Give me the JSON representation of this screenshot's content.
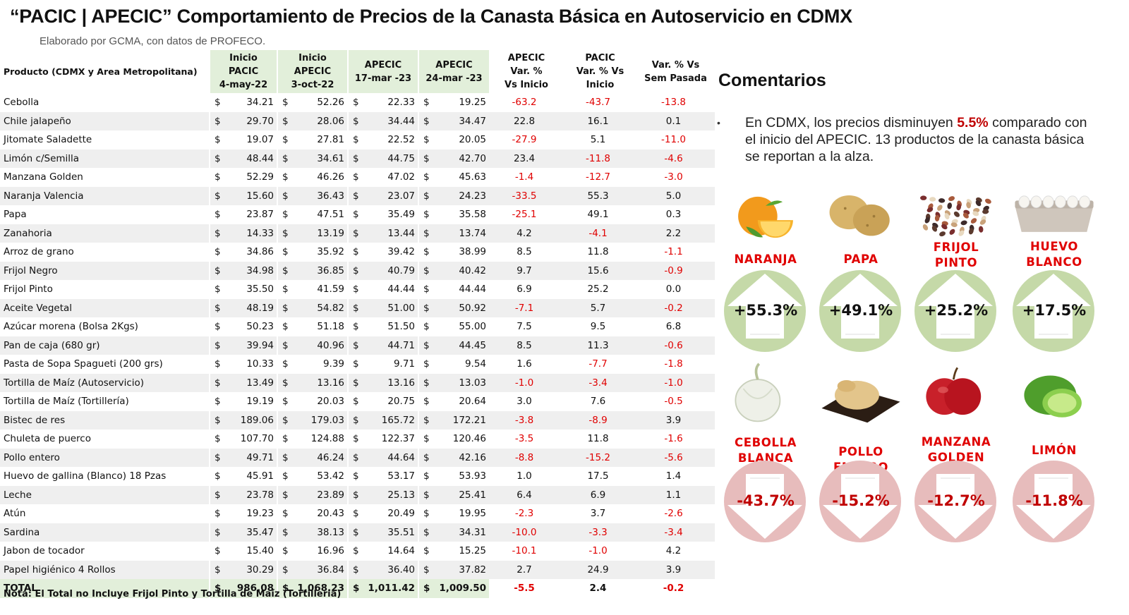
{
  "header": {
    "title": "“PACIC | APECIC” Comportamiento de Precios de la Canasta Básica en Autoservicio en CDMX",
    "subtitle": "Elaborado por GCMA, con datos de PROFECO."
  },
  "table": {
    "currency": "$",
    "headers": {
      "product": "Producto (CDMX y Area Metropolitana)",
      "c1": [
        "Inicio",
        "PACIC",
        "4-may-22"
      ],
      "c2": [
        "Inicio",
        "APECIC",
        "3-oct-22"
      ],
      "c3": [
        "APECIC",
        "17-mar -23"
      ],
      "c4": [
        "APECIC",
        "24-mar -23"
      ],
      "c5": [
        "APECIC",
        "Var. %",
        "Vs  Inicio"
      ],
      "c6": [
        "PACIC",
        "Var. % Vs",
        "Inicio"
      ],
      "c7": [
        "Var. % Vs",
        "Sem Pasada"
      ]
    },
    "rows": [
      {
        "product": "Cebolla",
        "pacic": "34.21",
        "apecic": "52.26",
        "mar17": "22.33",
        "mar24": "19.25",
        "var_apecic": "-63.2",
        "var_pacic": "-43.7",
        "var_sem": "-13.8"
      },
      {
        "product": "Chile jalapeño",
        "pacic": "29.70",
        "apecic": "28.06",
        "mar17": "34.44",
        "mar24": "34.47",
        "var_apecic": "22.8",
        "var_pacic": "16.1",
        "var_sem": "0.1"
      },
      {
        "product": "Jitomate Saladette",
        "pacic": "19.07",
        "apecic": "27.81",
        "mar17": "22.52",
        "mar24": "20.05",
        "var_apecic": "-27.9",
        "var_pacic": "5.1",
        "var_sem": "-11.0"
      },
      {
        "product": "Limón c/Semilla",
        "pacic": "48.44",
        "apecic": "34.61",
        "mar17": "44.75",
        "mar24": "42.70",
        "var_apecic": "23.4",
        "var_pacic": "-11.8",
        "var_sem": "-4.6"
      },
      {
        "product": "Manzana Golden",
        "pacic": "52.29",
        "apecic": "46.26",
        "mar17": "47.02",
        "mar24": "45.63",
        "var_apecic": "-1.4",
        "var_pacic": "-12.7",
        "var_sem": "-3.0"
      },
      {
        "product": "Naranja Valencia",
        "pacic": "15.60",
        "apecic": "36.43",
        "mar17": "23.07",
        "mar24": "24.23",
        "var_apecic": "-33.5",
        "var_pacic": "55.3",
        "var_sem": "5.0"
      },
      {
        "product": "Papa",
        "pacic": "23.87",
        "apecic": "47.51",
        "mar17": "35.49",
        "mar24": "35.58",
        "var_apecic": "-25.1",
        "var_pacic": "49.1",
        "var_sem": "0.3"
      },
      {
        "product": "Zanahoria",
        "pacic": "14.33",
        "apecic": "13.19",
        "mar17": "13.44",
        "mar24": "13.74",
        "var_apecic": "4.2",
        "var_pacic": "-4.1",
        "var_sem": "2.2"
      },
      {
        "product": "Arroz de grano",
        "pacic": "34.86",
        "apecic": "35.92",
        "mar17": "39.42",
        "mar24": "38.99",
        "var_apecic": "8.5",
        "var_pacic": "11.8",
        "var_sem": "-1.1"
      },
      {
        "product": "Frijol Negro",
        "pacic": "34.98",
        "apecic": "36.85",
        "mar17": "40.79",
        "mar24": "40.42",
        "var_apecic": "9.7",
        "var_pacic": "15.6",
        "var_sem": "-0.9"
      },
      {
        "product": "Frijol Pinto",
        "pacic": "35.50",
        "apecic": "41.59",
        "mar17": "44.44",
        "mar24": "44.44",
        "var_apecic": "6.9",
        "var_pacic": "25.2",
        "var_sem": "0.0"
      },
      {
        "product": "Aceite Vegetal",
        "pacic": "48.19",
        "apecic": "54.82",
        "mar17": "51.00",
        "mar24": "50.92",
        "var_apecic": "-7.1",
        "var_pacic": "5.7",
        "var_sem": "-0.2"
      },
      {
        "product": "Azúcar morena (Bolsa 2Kgs)",
        "pacic": "50.23",
        "apecic": "51.18",
        "mar17": "51.50",
        "mar24": "55.00",
        "var_apecic": "7.5",
        "var_pacic": "9.5",
        "var_sem": "6.8"
      },
      {
        "product": "Pan de caja (680 gr)",
        "pacic": "39.94",
        "apecic": "40.96",
        "mar17": "44.71",
        "mar24": "44.45",
        "var_apecic": "8.5",
        "var_pacic": "11.3",
        "var_sem": "-0.6"
      },
      {
        "product": "Pasta de Sopa Spagueti (200 grs)",
        "pacic": "10.33",
        "apecic": "9.39",
        "mar17": "9.71",
        "mar24": "9.54",
        "var_apecic": "1.6",
        "var_pacic": "-7.7",
        "var_sem": "-1.8"
      },
      {
        "product": "Tortilla de Maíz (Autoservicio)",
        "pacic": "13.49",
        "apecic": "13.16",
        "mar17": "13.16",
        "mar24": "13.03",
        "var_apecic": "-1.0",
        "var_pacic": "-3.4",
        "var_sem": "-1.0"
      },
      {
        "product": "Tortilla de Maíz (Tortillería)",
        "pacic": "19.19",
        "apecic": "20.03",
        "mar17": "20.75",
        "mar24": "20.64",
        "var_apecic": "3.0",
        "var_pacic": "7.6",
        "var_sem": "-0.5"
      },
      {
        "product": "Bistec de res",
        "pacic": "189.06",
        "apecic": "179.03",
        "mar17": "165.72",
        "mar24": "172.21",
        "var_apecic": "-3.8",
        "var_pacic": "-8.9",
        "var_sem": "3.9"
      },
      {
        "product": "Chuleta de puerco",
        "pacic": "107.70",
        "apecic": "124.88",
        "mar17": "122.37",
        "mar24": "120.46",
        "var_apecic": "-3.5",
        "var_pacic": "11.8",
        "var_sem": "-1.6"
      },
      {
        "product": "Pollo entero",
        "pacic": "49.71",
        "apecic": "46.24",
        "mar17": "44.64",
        "mar24": "42.16",
        "var_apecic": "-8.8",
        "var_pacic": "-15.2",
        "var_sem": "-5.6"
      },
      {
        "product": "Huevo de gallina (Blanco) 18 Pzas",
        "pacic": "45.91",
        "apecic": "53.42",
        "mar17": "53.17",
        "mar24": "53.93",
        "var_apecic": "1.0",
        "var_pacic": "17.5",
        "var_sem": "1.4"
      },
      {
        "product": "Leche",
        "pacic": "23.78",
        "apecic": "23.89",
        "mar17": "25.13",
        "mar24": "25.41",
        "var_apecic": "6.4",
        "var_pacic": "6.9",
        "var_sem": "1.1"
      },
      {
        "product": "Atún",
        "pacic": "19.23",
        "apecic": "20.43",
        "mar17": "20.49",
        "mar24": "19.95",
        "var_apecic": "-2.3",
        "var_pacic": "3.7",
        "var_sem": "-2.6"
      },
      {
        "product": "Sardina",
        "pacic": "35.47",
        "apecic": "38.13",
        "mar17": "35.51",
        "mar24": "34.31",
        "var_apecic": "-10.0",
        "var_pacic": "-3.3",
        "var_sem": "-3.4"
      },
      {
        "product": "Jabon de tocador",
        "pacic": "15.40",
        "apecic": "16.96",
        "mar17": "14.64",
        "mar24": "15.25",
        "var_apecic": "-10.1",
        "var_pacic": "-1.0",
        "var_sem": "4.2"
      },
      {
        "product": "Papel higiénico 4 Rollos",
        "pacic": "30.29",
        "apecic": "36.84",
        "mar17": "36.40",
        "mar24": "37.82",
        "var_apecic": "2.7",
        "var_pacic": "24.9",
        "var_sem": "3.9"
      }
    ],
    "total": {
      "product": "TOTAL",
      "pacic": "986.08",
      "apecic": "1,068.23",
      "mar17": "1,011.42",
      "mar24": "1,009.50",
      "var_apecic": "-5.5",
      "var_pacic": "2.4",
      "var_sem": "-0.2"
    },
    "note": "Nota: El Total no Incluye Frijol Pinto y Tortilla de Maíz (Tortilleria)"
  },
  "comments": {
    "title": "Comentarios",
    "bullet": "•",
    "text_before": "En CDMX, los precios disminuyen ",
    "highlight": "5.5%",
    "text_after": " comparado con el inicio del APECIC. 13 productos de la canasta básica se reportan a la alza."
  },
  "highlights": {
    "up": [
      {
        "lines": [
          "NARANJA"
        ],
        "pct": "+55.3%",
        "icon": "orange-icon"
      },
      {
        "lines": [
          "PAPA"
        ],
        "pct": "+49.1%",
        "icon": "potato-icon"
      },
      {
        "lines": [
          "FRIJOL",
          "PINTO"
        ],
        "pct": "+25.2%",
        "icon": "beans-icon"
      },
      {
        "lines": [
          "HUEVO",
          "BLANCO"
        ],
        "pct": "+17.5%",
        "icon": "egg-carton-icon"
      }
    ],
    "down": [
      {
        "lines": [
          "CEBOLLA",
          "BLANCA"
        ],
        "pct": "-43.7%",
        "icon": "onion-icon"
      },
      {
        "lines": [
          "POLLO",
          "ENTERO"
        ],
        "pct": "-15.2%",
        "icon": "chicken-icon"
      },
      {
        "lines": [
          "MANZANA",
          "GOLDEN"
        ],
        "pct": "-12.7%",
        "icon": "apple-icon"
      },
      {
        "lines": [
          "LIMÓN"
        ],
        "pct": "-11.8%",
        "icon": "lime-icon"
      }
    ]
  },
  "colors": {
    "negative": "#e00000",
    "header_green": "#e2efda",
    "row_stripe": "#efefef",
    "up_circle": "#c5d9a8",
    "down_circle": "#e7bcbc",
    "label_red": "#e00000"
  }
}
